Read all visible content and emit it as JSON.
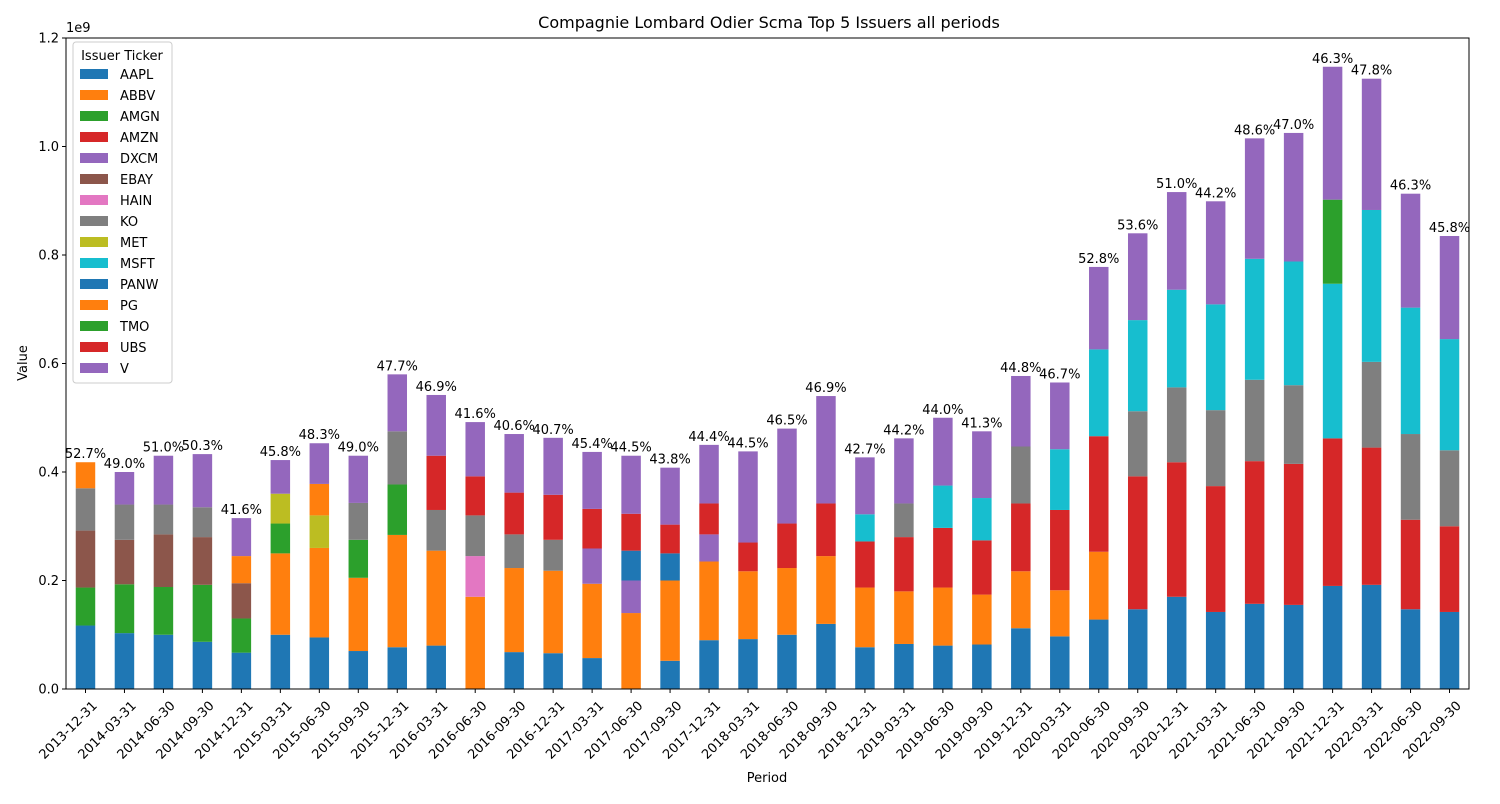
{
  "chart_data": {
    "type": "bar",
    "stacked": true,
    "title": "Compagnie Lombard Odier Scma Top 5 Issuers all periods",
    "xlabel": "Period",
    "ylabel": "Value",
    "y_offset_label": "1e9",
    "ylim": [
      0,
      1.2
    ],
    "yticks": [
      "0.0",
      "0.2",
      "0.4",
      "0.6",
      "0.8",
      "1.0",
      "1.2"
    ],
    "legend": {
      "title": "Issuer Ticker",
      "placement": "top-left",
      "entries": [
        {
          "name": "AAPL",
          "color": "#1f77b4"
        },
        {
          "name": "ABBV",
          "color": "#ff7f0e"
        },
        {
          "name": "AMGN",
          "color": "#2ca02c"
        },
        {
          "name": "AMZN",
          "color": "#d62728"
        },
        {
          "name": "DXCM",
          "color": "#9467bd"
        },
        {
          "name": "EBAY",
          "color": "#8c564b"
        },
        {
          "name": "HAIN",
          "color": "#e377c2"
        },
        {
          "name": "KO",
          "color": "#7f7f7f"
        },
        {
          "name": "MET",
          "color": "#bcbd22"
        },
        {
          "name": "MSFT",
          "color": "#17becf"
        },
        {
          "name": "PANW",
          "color": "#1f77b4"
        },
        {
          "name": "PG",
          "color": "#ff7f0e"
        },
        {
          "name": "TMO",
          "color": "#2ca02c"
        },
        {
          "name": "UBS",
          "color": "#d62728"
        },
        {
          "name": "V",
          "color": "#9467bd"
        }
      ]
    },
    "periods": [
      {
        "period": "2013-12-31",
        "label": "52.7%",
        "segments": [
          {
            "ticker": "AAPL",
            "value": 0.117
          },
          {
            "ticker": "AMGN",
            "value": 0.07
          },
          {
            "ticker": "EBAY",
            "value": 0.105
          },
          {
            "ticker": "KO",
            "value": 0.078
          },
          {
            "ticker": "PG",
            "value": 0.048
          }
        ]
      },
      {
        "period": "2014-03-31",
        "label": "49.0%",
        "segments": [
          {
            "ticker": "AAPL",
            "value": 0.103
          },
          {
            "ticker": "AMGN",
            "value": 0.09
          },
          {
            "ticker": "EBAY",
            "value": 0.082
          },
          {
            "ticker": "KO",
            "value": 0.065
          },
          {
            "ticker": "V",
            "value": 0.06
          }
        ]
      },
      {
        "period": "2014-06-30",
        "label": "51.0%",
        "segments": [
          {
            "ticker": "AAPL",
            "value": 0.1
          },
          {
            "ticker": "AMGN",
            "value": 0.088
          },
          {
            "ticker": "EBAY",
            "value": 0.097
          },
          {
            "ticker": "KO",
            "value": 0.055
          },
          {
            "ticker": "V",
            "value": 0.09
          }
        ]
      },
      {
        "period": "2014-09-30",
        "label": "50.3%",
        "segments": [
          {
            "ticker": "AAPL",
            "value": 0.087
          },
          {
            "ticker": "AMGN",
            "value": 0.105
          },
          {
            "ticker": "EBAY",
            "value": 0.088
          },
          {
            "ticker": "KO",
            "value": 0.055
          },
          {
            "ticker": "V",
            "value": 0.098
          }
        ]
      },
      {
        "period": "2014-12-31",
        "label": "41.6%",
        "segments": [
          {
            "ticker": "AAPL",
            "value": 0.067
          },
          {
            "ticker": "AMGN",
            "value": 0.063
          },
          {
            "ticker": "EBAY",
            "value": 0.065
          },
          {
            "ticker": "PG",
            "value": 0.05
          },
          {
            "ticker": "V",
            "value": 0.07
          }
        ]
      },
      {
        "period": "2015-03-31",
        "label": "45.8%",
        "segments": [
          {
            "ticker": "AAPL",
            "value": 0.1
          },
          {
            "ticker": "ABBV",
            "value": 0.15
          },
          {
            "ticker": "AMGN",
            "value": 0.055
          },
          {
            "ticker": "MET",
            "value": 0.055
          },
          {
            "ticker": "V",
            "value": 0.062
          }
        ]
      },
      {
        "period": "2015-06-30",
        "label": "48.3%",
        "segments": [
          {
            "ticker": "AAPL",
            "value": 0.095
          },
          {
            "ticker": "ABBV",
            "value": 0.165
          },
          {
            "ticker": "MET",
            "value": 0.06
          },
          {
            "ticker": "PG",
            "value": 0.058
          },
          {
            "ticker": "V",
            "value": 0.075
          }
        ]
      },
      {
        "period": "2015-09-30",
        "label": "49.0%",
        "segments": [
          {
            "ticker": "AAPL",
            "value": 0.07
          },
          {
            "ticker": "ABBV",
            "value": 0.135
          },
          {
            "ticker": "AMGN",
            "value": 0.07
          },
          {
            "ticker": "KO",
            "value": 0.068
          },
          {
            "ticker": "V",
            "value": 0.087
          }
        ]
      },
      {
        "period": "2015-12-31",
        "label": "47.7%",
        "segments": [
          {
            "ticker": "AAPL",
            "value": 0.077
          },
          {
            "ticker": "ABBV",
            "value": 0.207
          },
          {
            "ticker": "AMGN",
            "value": 0.093
          },
          {
            "ticker": "KO",
            "value": 0.098
          },
          {
            "ticker": "V",
            "value": 0.105
          }
        ]
      },
      {
        "period": "2016-03-31",
        "label": "46.9%",
        "segments": [
          {
            "ticker": "AAPL",
            "value": 0.08
          },
          {
            "ticker": "ABBV",
            "value": 0.175
          },
          {
            "ticker": "KO",
            "value": 0.075
          },
          {
            "ticker": "AMZN",
            "value": 0.1
          },
          {
            "ticker": "V",
            "value": 0.112
          }
        ]
      },
      {
        "period": "2016-06-30",
        "label": "41.6%",
        "segments": [
          {
            "ticker": "ABBV",
            "value": 0.17
          },
          {
            "ticker": "HAIN",
            "value": 0.075
          },
          {
            "ticker": "KO",
            "value": 0.075
          },
          {
            "ticker": "AMZN",
            "value": 0.072
          },
          {
            "ticker": "V",
            "value": 0.1
          }
        ]
      },
      {
        "period": "2016-09-30",
        "label": "40.6%",
        "segments": [
          {
            "ticker": "AAPL",
            "value": 0.068
          },
          {
            "ticker": "ABBV",
            "value": 0.155
          },
          {
            "ticker": "KO",
            "value": 0.062
          },
          {
            "ticker": "AMZN",
            "value": 0.077
          },
          {
            "ticker": "V",
            "value": 0.108
          }
        ]
      },
      {
        "period": "2016-12-31",
        "label": "40.7%",
        "segments": [
          {
            "ticker": "AAPL",
            "value": 0.066
          },
          {
            "ticker": "ABBV",
            "value": 0.152
          },
          {
            "ticker": "KO",
            "value": 0.057
          },
          {
            "ticker": "AMZN",
            "value": 0.083
          },
          {
            "ticker": "V",
            "value": 0.105
          }
        ]
      },
      {
        "period": "2017-03-31",
        "label": "45.4%",
        "segments": [
          {
            "ticker": "AAPL",
            "value": 0.057
          },
          {
            "ticker": "ABBV",
            "value": 0.137
          },
          {
            "ticker": "DXCM",
            "value": 0.065
          },
          {
            "ticker": "AMZN",
            "value": 0.073
          },
          {
            "ticker": "V",
            "value": 0.105
          }
        ]
      },
      {
        "period": "2017-06-30",
        "label": "44.5%",
        "segments": [
          {
            "ticker": "ABBV",
            "value": 0.14
          },
          {
            "ticker": "DXCM",
            "value": 0.06
          },
          {
            "ticker": "PANW",
            "value": 0.055
          },
          {
            "ticker": "AMZN",
            "value": 0.068
          },
          {
            "ticker": "V",
            "value": 0.107
          }
        ]
      },
      {
        "period": "2017-09-30",
        "label": "43.8%",
        "segments": [
          {
            "ticker": "AAPL",
            "value": 0.052
          },
          {
            "ticker": "ABBV",
            "value": 0.148
          },
          {
            "ticker": "PANW",
            "value": 0.05
          },
          {
            "ticker": "AMZN",
            "value": 0.053
          },
          {
            "ticker": "V",
            "value": 0.105
          }
        ]
      },
      {
        "period": "2017-12-31",
        "label": "44.4%",
        "segments": [
          {
            "ticker": "AAPL",
            "value": 0.09
          },
          {
            "ticker": "ABBV",
            "value": 0.145
          },
          {
            "ticker": "DXCM",
            "value": 0.05
          },
          {
            "ticker": "AMZN",
            "value": 0.057
          },
          {
            "ticker": "V",
            "value": 0.108
          }
        ]
      },
      {
        "period": "2018-03-31",
        "label": "44.5%",
        "segments": [
          {
            "ticker": "AAPL",
            "value": 0.092
          },
          {
            "ticker": "ABBV",
            "value": 0.125
          },
          {
            "ticker": "AMZN",
            "value": 0.053
          },
          {
            "ticker": "V",
            "value": 0.168
          }
        ]
      },
      {
        "period": "2018-06-30",
        "label": "46.5%",
        "segments": [
          {
            "ticker": "AAPL",
            "value": 0.1
          },
          {
            "ticker": "ABBV",
            "value": 0.123
          },
          {
            "ticker": "AMZN",
            "value": 0.082
          },
          {
            "ticker": "V",
            "value": 0.175
          }
        ]
      },
      {
        "period": "2018-09-30",
        "label": "46.9%",
        "segments": [
          {
            "ticker": "AAPL",
            "value": 0.12
          },
          {
            "ticker": "ABBV",
            "value": 0.125
          },
          {
            "ticker": "AMZN",
            "value": 0.097
          },
          {
            "ticker": "V",
            "value": 0.198
          }
        ]
      },
      {
        "period": "2018-12-31",
        "label": "42.7%",
        "segments": [
          {
            "ticker": "AAPL",
            "value": 0.077
          },
          {
            "ticker": "ABBV",
            "value": 0.11
          },
          {
            "ticker": "AMZN",
            "value": 0.085
          },
          {
            "ticker": "MSFT",
            "value": 0.05
          },
          {
            "ticker": "V",
            "value": 0.105
          }
        ]
      },
      {
        "period": "2019-03-31",
        "label": "44.2%",
        "segments": [
          {
            "ticker": "AAPL",
            "value": 0.083
          },
          {
            "ticker": "ABBV",
            "value": 0.097
          },
          {
            "ticker": "AMZN",
            "value": 0.1
          },
          {
            "ticker": "KO",
            "value": 0.062
          },
          {
            "ticker": "V",
            "value": 0.12
          }
        ]
      },
      {
        "period": "2019-06-30",
        "label": "44.0%",
        "segments": [
          {
            "ticker": "AAPL",
            "value": 0.08
          },
          {
            "ticker": "ABBV",
            "value": 0.107
          },
          {
            "ticker": "AMZN",
            "value": 0.11
          },
          {
            "ticker": "MSFT",
            "value": 0.078
          },
          {
            "ticker": "V",
            "value": 0.125
          }
        ]
      },
      {
        "period": "2019-09-30",
        "label": "41.3%",
        "segments": [
          {
            "ticker": "AAPL",
            "value": 0.082
          },
          {
            "ticker": "ABBV",
            "value": 0.092
          },
          {
            "ticker": "AMZN",
            "value": 0.1
          },
          {
            "ticker": "MSFT",
            "value": 0.078
          },
          {
            "ticker": "V",
            "value": 0.123
          }
        ]
      },
      {
        "period": "2019-12-31",
        "label": "44.8%",
        "segments": [
          {
            "ticker": "AAPL",
            "value": 0.112
          },
          {
            "ticker": "ABBV",
            "value": 0.105
          },
          {
            "ticker": "AMZN",
            "value": 0.125
          },
          {
            "ticker": "KO",
            "value": 0.105
          },
          {
            "ticker": "V",
            "value": 0.13
          }
        ]
      },
      {
        "period": "2020-03-31",
        "label": "46.7%",
        "segments": [
          {
            "ticker": "AAPL",
            "value": 0.097
          },
          {
            "ticker": "ABBV",
            "value": 0.085
          },
          {
            "ticker": "AMZN",
            "value": 0.148
          },
          {
            "ticker": "MSFT",
            "value": 0.112
          },
          {
            "ticker": "V",
            "value": 0.123
          }
        ]
      },
      {
        "period": "2020-06-30",
        "label": "52.8%",
        "segments": [
          {
            "ticker": "AAPL",
            "value": 0.128
          },
          {
            "ticker": "ABBV",
            "value": 0.125
          },
          {
            "ticker": "AMZN",
            "value": 0.213
          },
          {
            "ticker": "MSFT",
            "value": 0.16
          },
          {
            "ticker": "V",
            "value": 0.152
          }
        ]
      },
      {
        "period": "2020-09-30",
        "label": "53.6%",
        "segments": [
          {
            "ticker": "AAPL",
            "value": 0.147
          },
          {
            "ticker": "AMZN",
            "value": 0.245
          },
          {
            "ticker": "KO",
            "value": 0.12
          },
          {
            "ticker": "MSFT",
            "value": 0.168
          },
          {
            "ticker": "V",
            "value": 0.16
          }
        ]
      },
      {
        "period": "2020-12-31",
        "label": "51.0%",
        "segments": [
          {
            "ticker": "AAPL",
            "value": 0.17
          },
          {
            "ticker": "AMZN",
            "value": 0.248
          },
          {
            "ticker": "KO",
            "value": 0.138
          },
          {
            "ticker": "MSFT",
            "value": 0.18
          },
          {
            "ticker": "V",
            "value": 0.18
          }
        ]
      },
      {
        "period": "2021-03-31",
        "label": "44.2%",
        "segments": [
          {
            "ticker": "AAPL",
            "value": 0.142
          },
          {
            "ticker": "AMZN",
            "value": 0.232
          },
          {
            "ticker": "KO",
            "value": 0.14
          },
          {
            "ticker": "MSFT",
            "value": 0.195
          },
          {
            "ticker": "V",
            "value": 0.19
          }
        ]
      },
      {
        "period": "2021-06-30",
        "label": "48.6%",
        "segments": [
          {
            "ticker": "AAPL",
            "value": 0.157
          },
          {
            "ticker": "AMZN",
            "value": 0.263
          },
          {
            "ticker": "KO",
            "value": 0.15
          },
          {
            "ticker": "MSFT",
            "value": 0.223
          },
          {
            "ticker": "V",
            "value": 0.222
          }
        ]
      },
      {
        "period": "2021-09-30",
        "label": "47.0%",
        "segments": [
          {
            "ticker": "AAPL",
            "value": 0.155
          },
          {
            "ticker": "AMZN",
            "value": 0.26
          },
          {
            "ticker": "KO",
            "value": 0.145
          },
          {
            "ticker": "MSFT",
            "value": 0.228
          },
          {
            "ticker": "V",
            "value": 0.237
          }
        ]
      },
      {
        "period": "2021-12-31",
        "label": "46.3%",
        "segments": [
          {
            "ticker": "AAPL",
            "value": 0.19
          },
          {
            "ticker": "AMZN",
            "value": 0.272
          },
          {
            "ticker": "MSFT",
            "value": 0.285
          },
          {
            "ticker": "TMO",
            "value": 0.155
          },
          {
            "ticker": "V",
            "value": 0.245
          }
        ]
      },
      {
        "period": "2022-03-31",
        "label": "47.8%",
        "segments": [
          {
            "ticker": "AAPL",
            "value": 0.192
          },
          {
            "ticker": "AMZN",
            "value": 0.253
          },
          {
            "ticker": "KO",
            "value": 0.158
          },
          {
            "ticker": "MSFT",
            "value": 0.28
          },
          {
            "ticker": "V",
            "value": 0.242
          }
        ]
      },
      {
        "period": "2022-06-30",
        "label": "46.3%",
        "segments": [
          {
            "ticker": "AAPL",
            "value": 0.147
          },
          {
            "ticker": "AMZN",
            "value": 0.165
          },
          {
            "ticker": "KO",
            "value": 0.158
          },
          {
            "ticker": "MSFT",
            "value": 0.233
          },
          {
            "ticker": "V",
            "value": 0.21
          }
        ]
      },
      {
        "period": "2022-09-30",
        "label": "45.8%",
        "segments": [
          {
            "ticker": "AAPL",
            "value": 0.142
          },
          {
            "ticker": "AMZN",
            "value": 0.158
          },
          {
            "ticker": "KO",
            "value": 0.14
          },
          {
            "ticker": "MSFT",
            "value": 0.205
          },
          {
            "ticker": "V",
            "value": 0.19
          }
        ]
      }
    ]
  }
}
